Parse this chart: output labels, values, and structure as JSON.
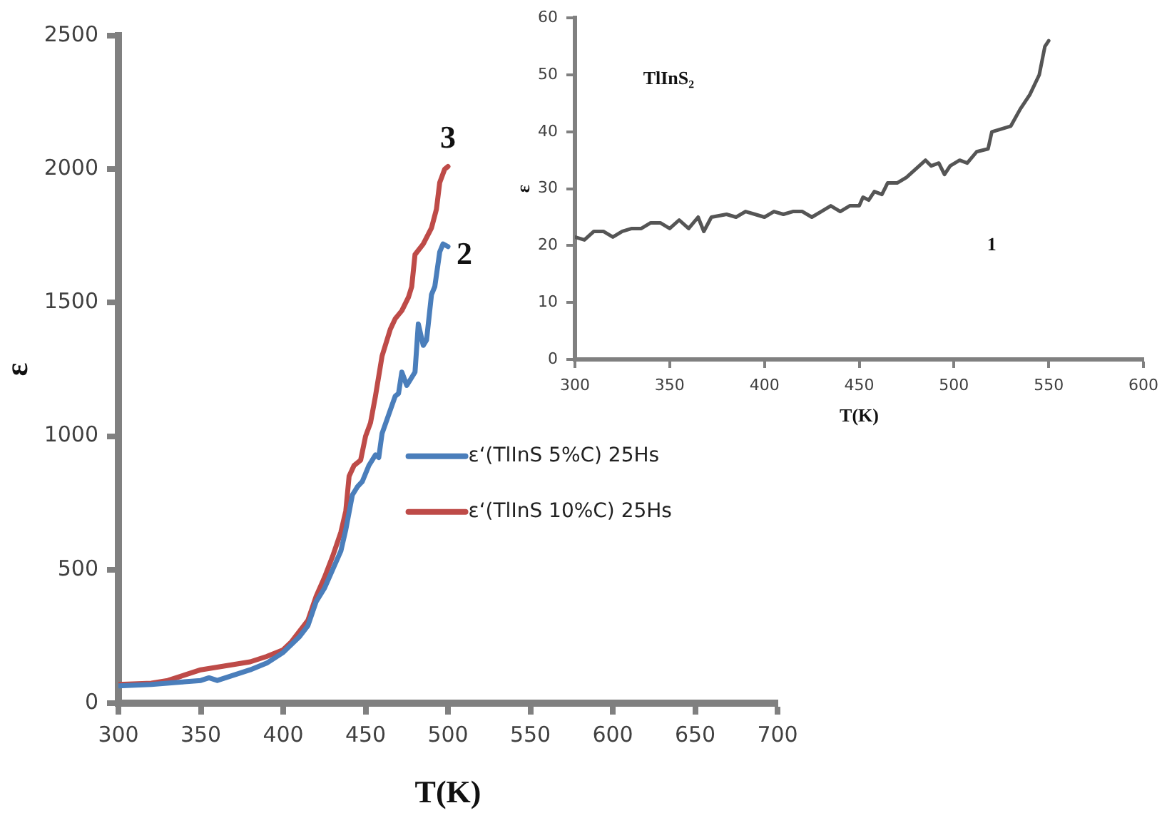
{
  "chart_data": [
    {
      "type": "line",
      "xlabel": "T(K)",
      "ylabel": "ε",
      "xlim": [
        300,
        700
      ],
      "xticks": [
        300,
        350,
        400,
        450,
        500,
        550,
        600,
        650,
        700
      ],
      "ylim": [
        0,
        2500
      ],
      "yticks": [
        0,
        500,
        1000,
        1500,
        2000,
        2500
      ],
      "grid": false,
      "legend": "center right",
      "marker": "none",
      "line_style": "solid",
      "annotations": [
        "3",
        "2"
      ],
      "series": [
        {
          "name": "ε‘(TlInS 5%C) 25Hs",
          "color": "#4a7ebb",
          "x": [
            300,
            320,
            340,
            350,
            355,
            360,
            370,
            380,
            390,
            400,
            410,
            415,
            420,
            425,
            430,
            435,
            438,
            442,
            445,
            448,
            452,
            456,
            458,
            460,
            464,
            468,
            470,
            472,
            475,
            478,
            480,
            482,
            485,
            487,
            490,
            492,
            495,
            497,
            500
          ],
          "values": [
            65,
            70,
            80,
            85,
            95,
            85,
            105,
            125,
            150,
            190,
            250,
            290,
            380,
            430,
            500,
            570,
            650,
            780,
            810,
            830,
            890,
            930,
            920,
            1010,
            1080,
            1150,
            1160,
            1240,
            1190,
            1220,
            1240,
            1420,
            1340,
            1360,
            1530,
            1560,
            1690,
            1720,
            1710
          ]
        },
        {
          "name": "ε‘(TlInS 10%C) 25Hs",
          "color": "#be4b48",
          "x": [
            300,
            320,
            330,
            340,
            350,
            360,
            370,
            380,
            390,
            400,
            405,
            410,
            415,
            420,
            425,
            430,
            435,
            438,
            440,
            443,
            447,
            450,
            453,
            456,
            460,
            465,
            468,
            472,
            476,
            478,
            480,
            485,
            490,
            493,
            495,
            498,
            500
          ],
          "values": [
            70,
            75,
            85,
            105,
            125,
            135,
            145,
            155,
            175,
            200,
            230,
            270,
            310,
            400,
            470,
            550,
            640,
            720,
            850,
            890,
            910,
            1000,
            1050,
            1150,
            1300,
            1400,
            1440,
            1470,
            1520,
            1560,
            1680,
            1720,
            1780,
            1850,
            1950,
            2000,
            2010
          ]
        }
      ]
    },
    {
      "type": "line",
      "title": "TlInS₂",
      "xlabel": "T(K)",
      "ylabel": "ε",
      "xlim": [
        300,
        600
      ],
      "xticks": [
        300,
        350,
        400,
        450,
        500,
        550,
        600
      ],
      "ylim": [
        0,
        60
      ],
      "yticks": [
        0,
        10,
        20,
        30,
        40,
        50,
        60
      ],
      "grid": false,
      "marker": "none",
      "line_style": "solid",
      "annotations": [
        "1"
      ],
      "series": [
        {
          "color": "#555555",
          "x": [
            300,
            305,
            310,
            315,
            320,
            325,
            330,
            335,
            340,
            345,
            350,
            355,
            360,
            365,
            368,
            372,
            380,
            385,
            390,
            395,
            400,
            405,
            410,
            415,
            420,
            425,
            430,
            435,
            440,
            445,
            450,
            452,
            455,
            458,
            462,
            465,
            470,
            475,
            480,
            485,
            488,
            492,
            495,
            498,
            503,
            507,
            512,
            518,
            520,
            525,
            530,
            535,
            540,
            545,
            548,
            550
          ],
          "values": [
            21.5,
            21,
            22.5,
            22.5,
            21.5,
            22.5,
            23,
            23,
            24,
            24,
            23,
            24.5,
            23,
            25,
            22.5,
            25,
            25.5,
            25,
            26,
            25.5,
            25,
            26,
            25.5,
            26,
            26,
            25,
            26,
            27,
            26,
            27,
            27,
            28.5,
            28,
            29.5,
            29,
            31,
            31,
            32,
            33.5,
            35,
            34,
            34.5,
            32.5,
            34,
            35,
            34.5,
            36.5,
            37,
            40,
            40.5,
            41,
            44,
            46.5,
            50,
            55,
            56
          ]
        }
      ]
    }
  ]
}
